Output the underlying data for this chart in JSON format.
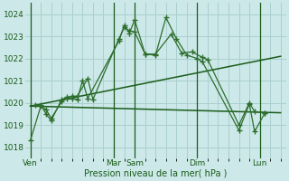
{
  "title": "",
  "xlabel": "Pression niveau de la mer( hPa )",
  "ylabel": "",
  "bg_color": "#cce8e8",
  "grid_color": "#aacfcf",
  "line_color_dark": "#1a5c1a",
  "line_color_mid": "#2d6e2d",
  "ylim": [
    1017.5,
    1024.5
  ],
  "yticks": [
    1018,
    1019,
    1020,
    1021,
    1022,
    1023,
    1024
  ],
  "day_labels": [
    "Ven",
    "",
    "Mar",
    "Sam",
    "",
    "Dim",
    "",
    "Lun"
  ],
  "day_tick_positions": [
    0,
    3.5,
    8,
    10,
    13,
    16,
    19,
    22
  ],
  "day_vline_positions": [
    0,
    8,
    10,
    16,
    22
  ],
  "series1_x": [
    0,
    1,
    1.5,
    2,
    3,
    3.5,
    4,
    4.5,
    5,
    5.5,
    8.5,
    9,
    9.5,
    10,
    11,
    12,
    13,
    14,
    15,
    16,
    16.5,
    20,
    21,
    21.5,
    22.5
  ],
  "series1_y": [
    1018.3,
    1019.85,
    1019.7,
    1019.3,
    1020.05,
    1020.2,
    1020.2,
    1020.15,
    1021.0,
    1020.2,
    1022.8,
    1023.5,
    1023.15,
    1023.75,
    1022.2,
    1022.15,
    1023.85,
    1022.9,
    1022.15,
    1022.0,
    1021.85,
    1018.75,
    1019.95,
    1018.7,
    1019.55
  ],
  "series2_x": [
    0.5,
    1,
    1.5,
    2,
    3,
    3.5,
    4,
    4.5,
    5.5,
    6,
    8.5,
    9,
    9.5,
    10,
    11,
    12,
    13.5,
    14.5,
    15.5,
    16.5,
    17,
    20,
    21,
    21.5,
    22.5
  ],
  "series2_y": [
    1019.9,
    1019.9,
    1019.5,
    1019.2,
    1020.15,
    1020.25,
    1020.3,
    1020.3,
    1021.1,
    1020.15,
    1022.9,
    1023.4,
    1023.25,
    1023.2,
    1022.2,
    1022.2,
    1023.1,
    1022.25,
    1022.3,
    1022.05,
    1021.95,
    1019.0,
    1020.0,
    1019.6,
    1019.55
  ],
  "trend1_x": [
    0,
    24
  ],
  "trend1_y": [
    1019.85,
    1022.1
  ],
  "trend2_x": [
    0,
    24
  ],
  "trend2_y": [
    1019.85,
    1019.55
  ],
  "xlim": [
    -0.5,
    24.5
  ]
}
